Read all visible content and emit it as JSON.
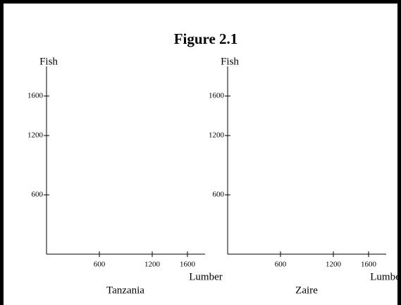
{
  "title": "Figure 2.1",
  "chart_data": [
    {
      "type": "line",
      "caption": "Tanzania",
      "xlabel": "Lumber",
      "ylabel": "Fish",
      "xlim": [
        0,
        1800
      ],
      "xticks": [
        600,
        1200,
        1600
      ],
      "ylim": [
        0,
        1900
      ],
      "yticks": [
        600,
        1200,
        1600
      ]
    },
    {
      "type": "line",
      "caption": "Zaire",
      "xlabel": "Lumber",
      "ylabel": "Fish",
      "xlim": [
        0,
        1800
      ],
      "xticks": [
        600,
        1200,
        1600
      ],
      "ylim": [
        0,
        1900
      ],
      "yticks": [
        600,
        1200,
        1600
      ]
    }
  ]
}
